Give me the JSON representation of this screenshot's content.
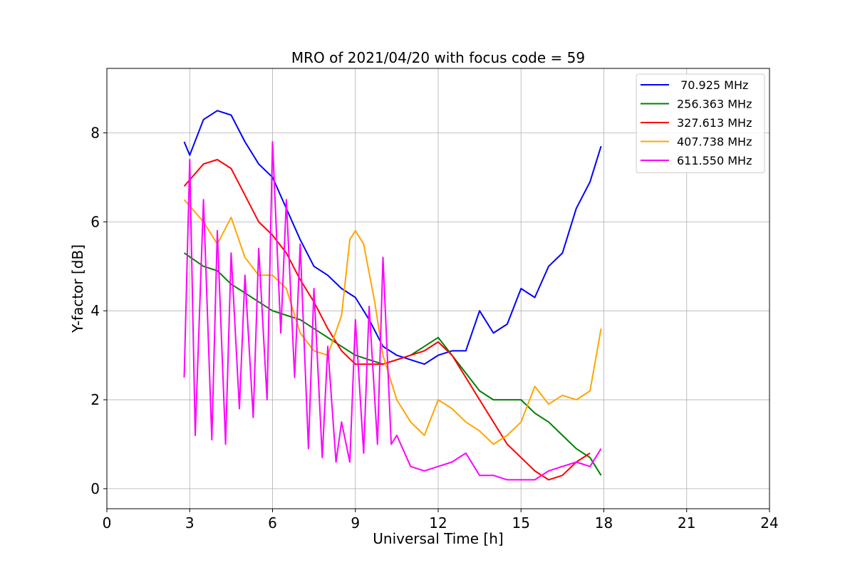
{
  "chart_data": {
    "type": "line",
    "title": "MRO of 2021/04/20 with focus code = 59",
    "xlabel": "Universal Time [h]",
    "ylabel": "Y-factor [dB]",
    "xlim": [
      0,
      24
    ],
    "ylim": [
      -0.45,
      9.45
    ],
    "x_ticks": [
      0,
      3,
      6,
      9,
      12,
      15,
      18,
      21,
      24
    ],
    "y_ticks": [
      0,
      2,
      4,
      6,
      8
    ],
    "grid": true,
    "legend_position": "top-right",
    "series": [
      {
        "name": " 70.925 MHz",
        "color": "#0000ff",
        "x": [
          2.8,
          3.0,
          3.5,
          4.0,
          4.5,
          5.0,
          5.5,
          6.0,
          6.5,
          7.0,
          7.5,
          8.0,
          8.5,
          9.0,
          9.5,
          10.0,
          10.5,
          11.0,
          11.5,
          12.0,
          12.5,
          13.0,
          13.5,
          14.0,
          14.5,
          15.0,
          15.5,
          16.0,
          16.5,
          17.0,
          17.5,
          17.9
        ],
        "y": [
          7.8,
          7.5,
          8.3,
          8.5,
          8.4,
          7.8,
          7.3,
          7.0,
          6.3,
          5.6,
          5.0,
          4.8,
          4.5,
          4.3,
          3.8,
          3.2,
          3.0,
          2.9,
          2.8,
          3.0,
          3.1,
          3.1,
          4.0,
          3.5,
          3.7,
          4.5,
          4.3,
          5.0,
          5.3,
          6.3,
          6.9,
          7.7
        ]
      },
      {
        "name": "256.363 MHz",
        "color": "#008000",
        "x": [
          2.8,
          3.5,
          4.0,
          4.5,
          5.0,
          5.5,
          6.0,
          6.5,
          7.0,
          7.5,
          8.0,
          8.5,
          9.0,
          9.5,
          10.0,
          10.5,
          11.0,
          11.5,
          12.0,
          12.5,
          13.0,
          13.5,
          14.0,
          14.5,
          15.0,
          15.5,
          16.0,
          16.5,
          17.0,
          17.5,
          17.9
        ],
        "y": [
          5.3,
          5.0,
          4.9,
          4.6,
          4.4,
          4.2,
          4.0,
          3.9,
          3.8,
          3.6,
          3.4,
          3.2,
          3.0,
          2.9,
          2.8,
          2.9,
          3.0,
          3.2,
          3.4,
          3.0,
          2.6,
          2.2,
          2.0,
          2.0,
          2.0,
          1.7,
          1.5,
          1.2,
          0.9,
          0.7,
          0.3
        ]
      },
      {
        "name": "327.613 MHz",
        "color": "#ff0000",
        "x": [
          2.8,
          3.5,
          4.0,
          4.5,
          5.0,
          5.5,
          6.0,
          6.5,
          7.0,
          7.5,
          8.0,
          8.5,
          9.0,
          9.5,
          10.0,
          10.5,
          11.0,
          11.5,
          12.0,
          12.5,
          13.0,
          13.5,
          14.0,
          14.5,
          15.0,
          15.5,
          16.0,
          16.5,
          17.0,
          17.5
        ],
        "y": [
          6.8,
          7.3,
          7.4,
          7.2,
          6.6,
          6.0,
          5.7,
          5.3,
          4.7,
          4.2,
          3.6,
          3.1,
          2.8,
          2.8,
          2.8,
          2.9,
          3.0,
          3.1,
          3.3,
          3.0,
          2.5,
          2.0,
          1.5,
          1.0,
          0.7,
          0.4,
          0.2,
          0.3,
          0.6,
          0.8
        ]
      },
      {
        "name": "407.738 MHz",
        "color": "#ffa500",
        "x": [
          2.8,
          3.5,
          4.0,
          4.5,
          5.0,
          5.5,
          6.0,
          6.5,
          7.0,
          7.5,
          8.0,
          8.5,
          8.8,
          9.0,
          9.3,
          9.7,
          10.0,
          10.5,
          11.0,
          11.5,
          12.0,
          12.5,
          13.0,
          13.5,
          14.0,
          14.5,
          15.0,
          15.5,
          16.0,
          16.5,
          17.0,
          17.5,
          17.9
        ],
        "y": [
          6.5,
          6.0,
          5.5,
          6.1,
          5.2,
          4.8,
          4.8,
          4.5,
          3.5,
          3.1,
          3.0,
          3.9,
          5.6,
          5.8,
          5.5,
          4.2,
          3.0,
          2.0,
          1.5,
          1.2,
          2.0,
          1.8,
          1.5,
          1.3,
          1.0,
          1.2,
          1.5,
          2.3,
          1.9,
          2.1,
          2.0,
          2.2,
          3.6
        ]
      },
      {
        "name": "611.550 MHz",
        "color": "#ff00ff",
        "x": [
          2.8,
          3.0,
          3.2,
          3.5,
          3.8,
          4.0,
          4.3,
          4.5,
          4.8,
          5.0,
          5.3,
          5.5,
          5.8,
          6.0,
          6.3,
          6.5,
          6.8,
          7.0,
          7.3,
          7.5,
          7.8,
          8.0,
          8.3,
          8.5,
          8.8,
          9.0,
          9.3,
          9.5,
          9.8,
          10.0,
          10.3,
          10.5,
          11.0,
          11.5,
          12.0,
          12.5,
          13.0,
          13.5,
          14.0,
          14.5,
          15.0,
          15.5,
          16.0,
          16.5,
          17.0,
          17.5,
          17.9
        ],
        "y": [
          2.5,
          7.4,
          1.2,
          6.5,
          1.1,
          5.8,
          1.0,
          5.3,
          1.8,
          4.8,
          1.6,
          5.4,
          2.0,
          7.8,
          3.5,
          6.5,
          2.5,
          5.5,
          0.9,
          4.5,
          0.7,
          3.2,
          0.6,
          1.5,
          0.6,
          3.8,
          0.8,
          4.1,
          1.0,
          5.2,
          1.0,
          1.2,
          0.5,
          0.4,
          0.5,
          0.6,
          0.8,
          0.3,
          0.3,
          0.2,
          0.2,
          0.2,
          0.4,
          0.5,
          0.6,
          0.5,
          0.9
        ]
      }
    ]
  }
}
